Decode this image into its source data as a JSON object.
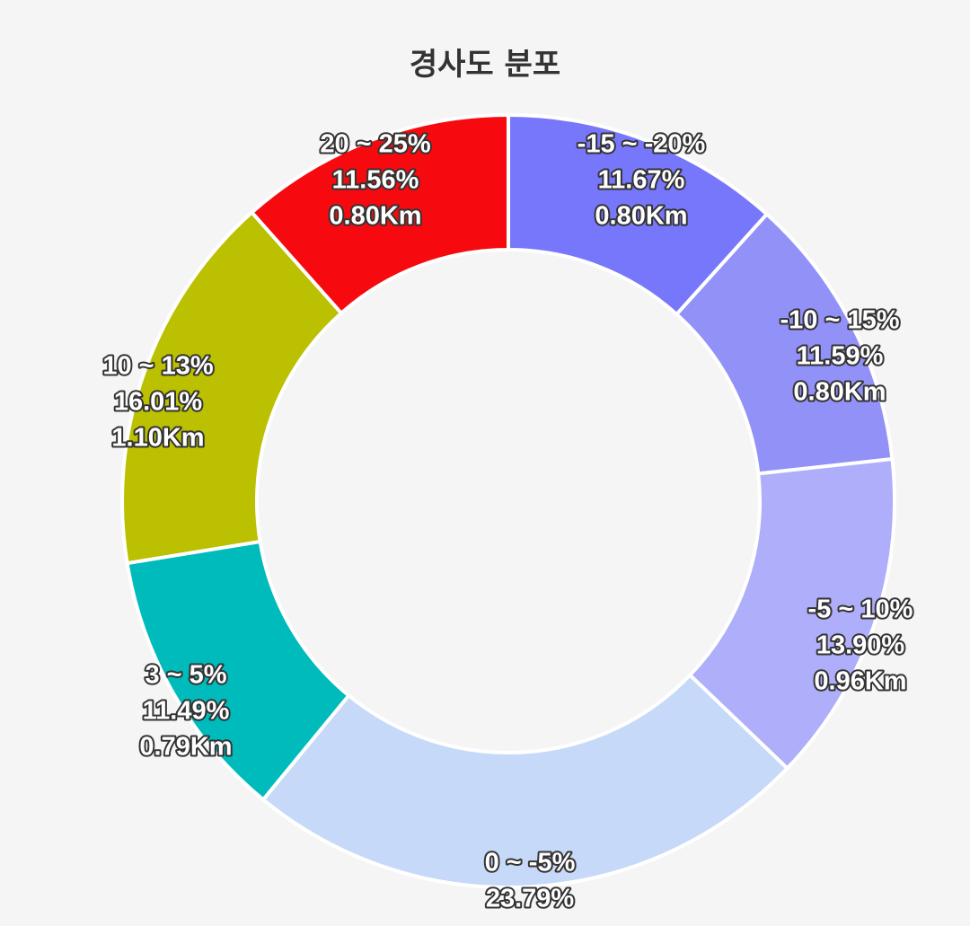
{
  "chart_data": {
    "type": "pie",
    "variant": "donut",
    "title": "경사도 분포",
    "segments": [
      {
        "range": "-15 ~ -20%",
        "percent": 11.67,
        "percent_label": "11.67%",
        "distance_label": "0.80Km",
        "color": "#7777fb"
      },
      {
        "range": "-10 ~ 15%",
        "percent": 11.59,
        "percent_label": "11.59%",
        "distance_label": "0.80Km",
        "color": "#9191f8"
      },
      {
        "range": "-5 ~ 10%",
        "percent": 13.9,
        "percent_label": "13.90%",
        "distance_label": "0.96Km",
        "color": "#aeaefa"
      },
      {
        "range": "0 ~ -5%",
        "percent": 23.79,
        "percent_label": "23.79%",
        "distance_label": "",
        "color": "#c6d9f9"
      },
      {
        "range": "3 ~ 5%",
        "percent": 11.49,
        "percent_label": "11.49%",
        "distance_label": "0.79Km",
        "color": "#00bbbb"
      },
      {
        "range": "10 ~ 13%",
        "percent": 16.01,
        "percent_label": "16.01%",
        "distance_label": "1.10Km",
        "color": "#bbc000"
      },
      {
        "range": "20 ~ 25%",
        "percent": 11.56,
        "percent_label": "11.56%",
        "distance_label": "0.80Km",
        "color": "#f60a10"
      }
    ]
  }
}
